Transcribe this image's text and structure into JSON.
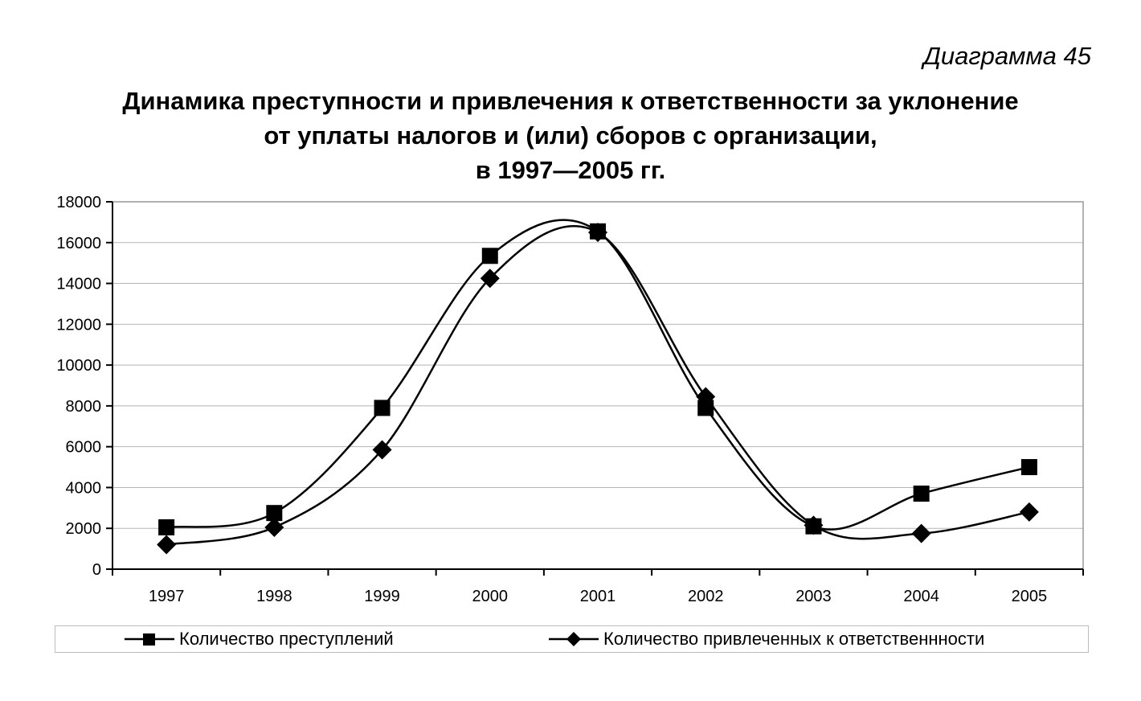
{
  "header": {
    "diagram_number": "Диаграмма 45",
    "title_lines": [
      "Динамика преступности и привлечения к ответственности за уклонение",
      "от уплаты налогов и (или) сборов с организации,",
      "в 1997—2005 гг."
    ]
  },
  "chart_data": {
    "type": "line",
    "title": "Динамика преступности и привлечения к ответственности за уклонение от уплаты налогов и (или) сборов с организации, в 1997—2005 гг.",
    "x": [
      "1997",
      "1998",
      "1999",
      "2000",
      "2001",
      "2002",
      "2003",
      "2004",
      "2005"
    ],
    "y_ticks": [
      "0",
      "2000",
      "4000",
      "6000",
      "8000",
      "10000",
      "12000",
      "14000",
      "16000",
      "18000"
    ],
    "ylim": [
      0,
      18000
    ],
    "grid": "horizontal",
    "legend_position": "bottom",
    "smooth": true,
    "series": [
      {
        "name": "Количество преступлений",
        "marker": "square",
        "values": [
          2050,
          2750,
          7900,
          15350,
          16550,
          7900,
          2100,
          3700,
          5000
        ]
      },
      {
        "name": "Количество привлеченных к ответственнности",
        "marker": "diamond",
        "values": [
          1200,
          2050,
          5850,
          14250,
          16500,
          8450,
          2150,
          1750,
          2800
        ]
      }
    ]
  },
  "legend": {
    "series_1_label": "Количество преступлений",
    "series_2_label": "Количество привлеченных к ответственнности"
  }
}
